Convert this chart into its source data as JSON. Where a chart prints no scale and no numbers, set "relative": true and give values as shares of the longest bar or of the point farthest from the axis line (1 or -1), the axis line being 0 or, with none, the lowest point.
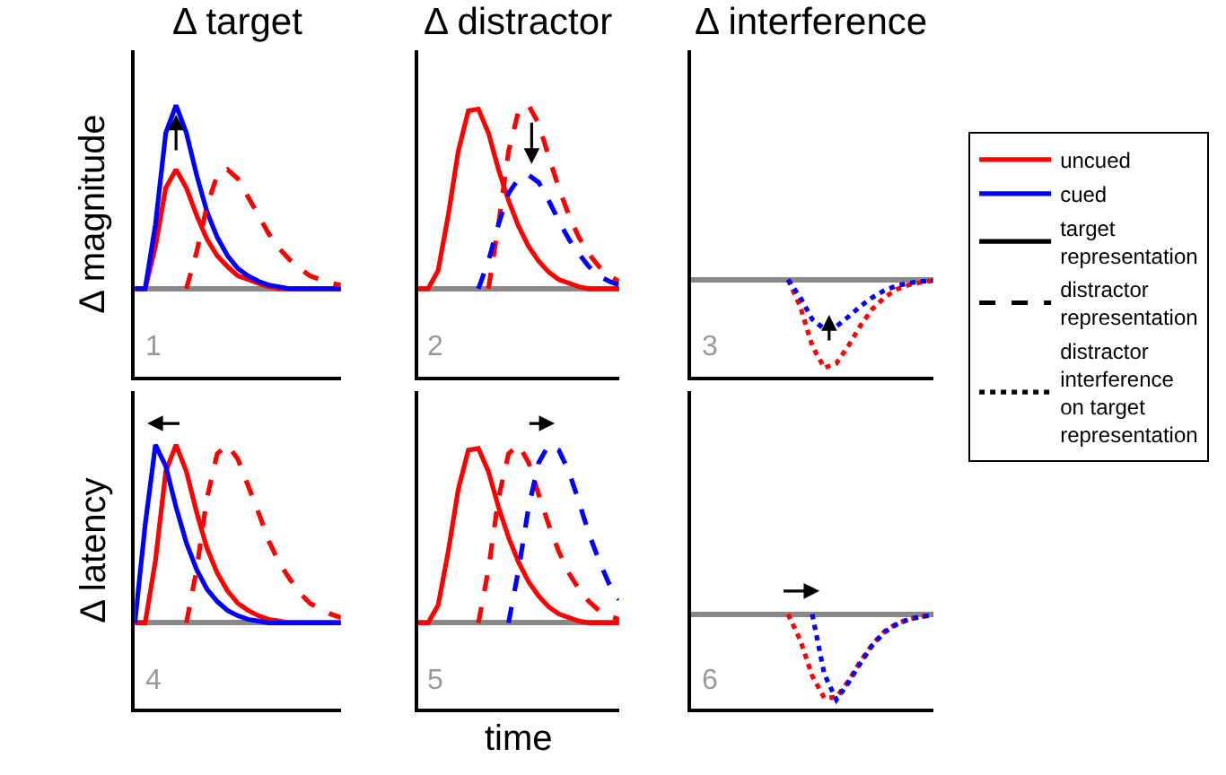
{
  "chart_data": [
    {
      "type": "line",
      "relative": true,
      "title": "Δ target",
      "ylabel": "Δ magnitude",
      "annotations": [
        "1"
      ],
      "categories": [
        null,
        null,
        null,
        null,
        null,
        null,
        null,
        null,
        null,
        null,
        null,
        null,
        null,
        null,
        null,
        null,
        null,
        null,
        null,
        null,
        null
      ],
      "series": [
        {
          "color": "#ff0000",
          "line_style": "solid",
          "values": [
            0,
            0,
            0.23,
            0.55,
            0.65,
            0.55,
            0.4,
            0.27,
            0.18,
            0.12,
            0.07,
            0.05,
            0.03,
            0.01,
            0,
            0,
            0,
            0,
            0,
            0,
            0
          ]
        },
        {
          "color": "#0000ff",
          "line_style": "solid",
          "values": [
            0,
            0,
            0.35,
            0.85,
            1.0,
            0.85,
            0.62,
            0.42,
            0.28,
            0.18,
            0.11,
            0.07,
            0.04,
            0.02,
            0.01,
            0,
            0,
            0,
            0,
            0,
            0
          ]
        },
        {
          "color": "#ff0000",
          "line_style": "dashed",
          "values": [
            null,
            null,
            null,
            null,
            null,
            0,
            0.2,
            0.45,
            0.62,
            0.65,
            0.6,
            0.5,
            0.4,
            0.3,
            0.22,
            0.16,
            0.11,
            0.07,
            0.05,
            0.03,
            0.02
          ]
        }
      ]
    },
    {
      "type": "line",
      "relative": true,
      "title": "Δ distractor",
      "annotations": [
        "2"
      ],
      "categories": [
        null,
        null,
        null,
        null,
        null,
        null,
        null,
        null,
        null,
        null,
        null,
        null,
        null,
        null,
        null,
        null,
        null,
        null,
        null,
        null,
        null
      ],
      "series": [
        {
          "color": "#ff0000",
          "line_style": "solid",
          "values": [
            0,
            0,
            0.1,
            0.4,
            0.75,
            0.97,
            0.98,
            0.85,
            0.65,
            0.48,
            0.34,
            0.23,
            0.15,
            0.09,
            0.05,
            0.03,
            0.01,
            0,
            0,
            0,
            0
          ]
        },
        {
          "color": "#ff0000",
          "line_style": "dashed",
          "values": [
            null,
            null,
            null,
            null,
            null,
            null,
            null,
            0,
            0.35,
            0.75,
            0.97,
            1.0,
            0.9,
            0.72,
            0.55,
            0.4,
            0.28,
            0.19,
            0.12,
            0.07,
            0.04
          ]
        },
        {
          "color": "#0000ff",
          "line_style": "dashed",
          "values": [
            null,
            null,
            null,
            null,
            null,
            null,
            0,
            0.15,
            0.35,
            0.52,
            0.6,
            0.62,
            0.58,
            0.48,
            0.37,
            0.27,
            0.19,
            0.12,
            0.07,
            0.04,
            0.02
          ]
        }
      ]
    },
    {
      "type": "line",
      "relative": true,
      "title": "Δ interference",
      "annotations": [
        "3"
      ],
      "categories": [
        null,
        null,
        null,
        null,
        null,
        null,
        null,
        null,
        null,
        null,
        null,
        null,
        null,
        null,
        null,
        null,
        null,
        null,
        null,
        null,
        null
      ],
      "series": [
        {
          "color": "#ff0000",
          "line_style": "dotted",
          "values": [
            null,
            null,
            null,
            null,
            null,
            null,
            null,
            null,
            0,
            -0.3,
            -0.75,
            -1.0,
            -0.95,
            -0.75,
            -0.52,
            -0.33,
            -0.2,
            -0.11,
            -0.06,
            -0.03,
            -0.01
          ]
        },
        {
          "color": "#0000ff",
          "line_style": "dotted",
          "values": [
            null,
            null,
            null,
            null,
            null,
            null,
            null,
            null,
            0,
            -0.2,
            -0.45,
            -0.56,
            -0.53,
            -0.42,
            -0.3,
            -0.2,
            -0.12,
            -0.07,
            -0.04,
            -0.02,
            -0.01
          ]
        }
      ]
    },
    {
      "type": "line",
      "relative": true,
      "ylabel": "Δ latency",
      "annotations": [
        "4"
      ],
      "categories": [
        null,
        null,
        null,
        null,
        null,
        null,
        null,
        null,
        null,
        null,
        null,
        null,
        null,
        null,
        null,
        null,
        null,
        null,
        null,
        null,
        null
      ],
      "series": [
        {
          "color": "#ff0000",
          "line_style": "solid",
          "values": [
            0,
            0,
            0.35,
            0.85,
            1.0,
            0.85,
            0.62,
            0.42,
            0.28,
            0.18,
            0.11,
            0.07,
            0.04,
            0.02,
            0.01,
            0,
            0,
            0,
            0,
            0,
            0
          ]
        },
        {
          "color": "#0000ff",
          "line_style": "solid",
          "values": [
            0,
            0.55,
            1.0,
            0.88,
            0.65,
            0.45,
            0.3,
            0.19,
            0.12,
            0.07,
            0.04,
            0.02,
            0.01,
            0,
            0,
            0,
            0,
            0,
            0,
            0,
            0
          ]
        },
        {
          "color": "#ff0000",
          "line_style": "dashed",
          "values": [
            null,
            null,
            null,
            null,
            null,
            0,
            0.3,
            0.7,
            0.95,
            1.0,
            0.92,
            0.77,
            0.62,
            0.46,
            0.34,
            0.25,
            0.17,
            0.11,
            0.08,
            0.05,
            0.03
          ]
        }
      ]
    },
    {
      "type": "line",
      "relative": true,
      "xlabel": "time",
      "annotations": [
        "5"
      ],
      "categories": [
        null,
        null,
        null,
        null,
        null,
        null,
        null,
        null,
        null,
        null,
        null,
        null,
        null,
        null,
        null,
        null,
        null,
        null,
        null,
        null,
        null
      ],
      "series": [
        {
          "color": "#ff0000",
          "line_style": "solid",
          "values": [
            0,
            0,
            0.1,
            0.4,
            0.75,
            0.97,
            0.98,
            0.85,
            0.65,
            0.48,
            0.34,
            0.23,
            0.15,
            0.09,
            0.05,
            0.03,
            0.01,
            0,
            0,
            0,
            0
          ]
        },
        {
          "color": "#ff0000",
          "line_style": "dashed",
          "values": [
            null,
            null,
            null,
            null,
            null,
            null,
            0,
            0.3,
            0.7,
            0.95,
            1.0,
            0.9,
            0.72,
            0.55,
            0.4,
            0.28,
            0.19,
            0.12,
            0.07,
            0.04,
            0.02
          ]
        },
        {
          "color": "#0000ff",
          "line_style": "dashed",
          "values": [
            null,
            null,
            null,
            null,
            null,
            null,
            null,
            null,
            null,
            0,
            0.3,
            0.65,
            0.9,
            1.0,
            0.97,
            0.85,
            0.68,
            0.5,
            0.35,
            0.22,
            0.13
          ]
        }
      ]
    },
    {
      "type": "line",
      "relative": true,
      "annotations": [
        "6"
      ],
      "categories": [
        null,
        null,
        null,
        null,
        null,
        null,
        null,
        null,
        null,
        null,
        null,
        null,
        null,
        null,
        null,
        null,
        null,
        null,
        null,
        null,
        null
      ],
      "series": [
        {
          "color": "#ff0000",
          "line_style": "dotted",
          "values": [
            null,
            null,
            null,
            null,
            null,
            null,
            null,
            null,
            0,
            -0.3,
            -0.72,
            -0.98,
            -0.97,
            -0.78,
            -0.55,
            -0.35,
            -0.2,
            -0.11,
            -0.06,
            -0.03,
            -0.01
          ]
        },
        {
          "color": "#0000ff",
          "line_style": "dotted",
          "values": [
            null,
            null,
            null,
            null,
            null,
            null,
            null,
            null,
            null,
            null,
            0,
            -0.7,
            -1.0,
            -0.8,
            -0.57,
            -0.36,
            -0.21,
            -0.12,
            -0.06,
            -0.03,
            -0.01
          ]
        }
      ]
    },
    {
      "type": "other",
      "legend": "right",
      "series": [
        {
          "name": "uncued",
          "color": "#ff0000",
          "line_style": "solid"
        },
        {
          "name": "cued",
          "color": "#0000ff",
          "line_style": "solid"
        },
        {
          "name": "target representation",
          "color": "#000000",
          "line_style": "solid"
        },
        {
          "name": "distractor representation",
          "color": "#000000",
          "line_style": "dashed"
        },
        {
          "name": "distractor interference on target representation",
          "color": "#000000",
          "line_style": "dotted"
        }
      ]
    }
  ]
}
